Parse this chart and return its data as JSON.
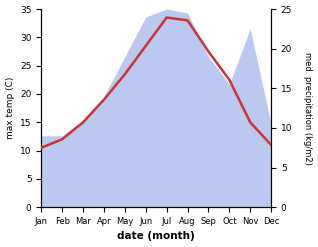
{
  "months": [
    "Jan",
    "Feb",
    "Mar",
    "Apr",
    "May",
    "Jun",
    "Jul",
    "Aug",
    "Sep",
    "Oct",
    "Nov",
    "Dec"
  ],
  "max_temp": [
    10.5,
    12.0,
    15.0,
    19.0,
    23.5,
    28.5,
    33.5,
    33.0,
    27.5,
    22.5,
    15.0,
    11.0
  ],
  "precipitation": [
    9.0,
    9.0,
    11.0,
    14.0,
    19.0,
    24.0,
    25.0,
    24.5,
    19.0,
    15.5,
    22.5,
    10.5
  ],
  "temp_color": "#cc3333",
  "precip_fill_color": "#bbc8ef",
  "temp_ylim": [
    0,
    35
  ],
  "precip_ylim": [
    0,
    25
  ],
  "xlabel": "date (month)",
  "ylabel_left": "max temp (C)",
  "ylabel_right": "med. precipitation (kg/m2)",
  "background_color": "#ffffff"
}
